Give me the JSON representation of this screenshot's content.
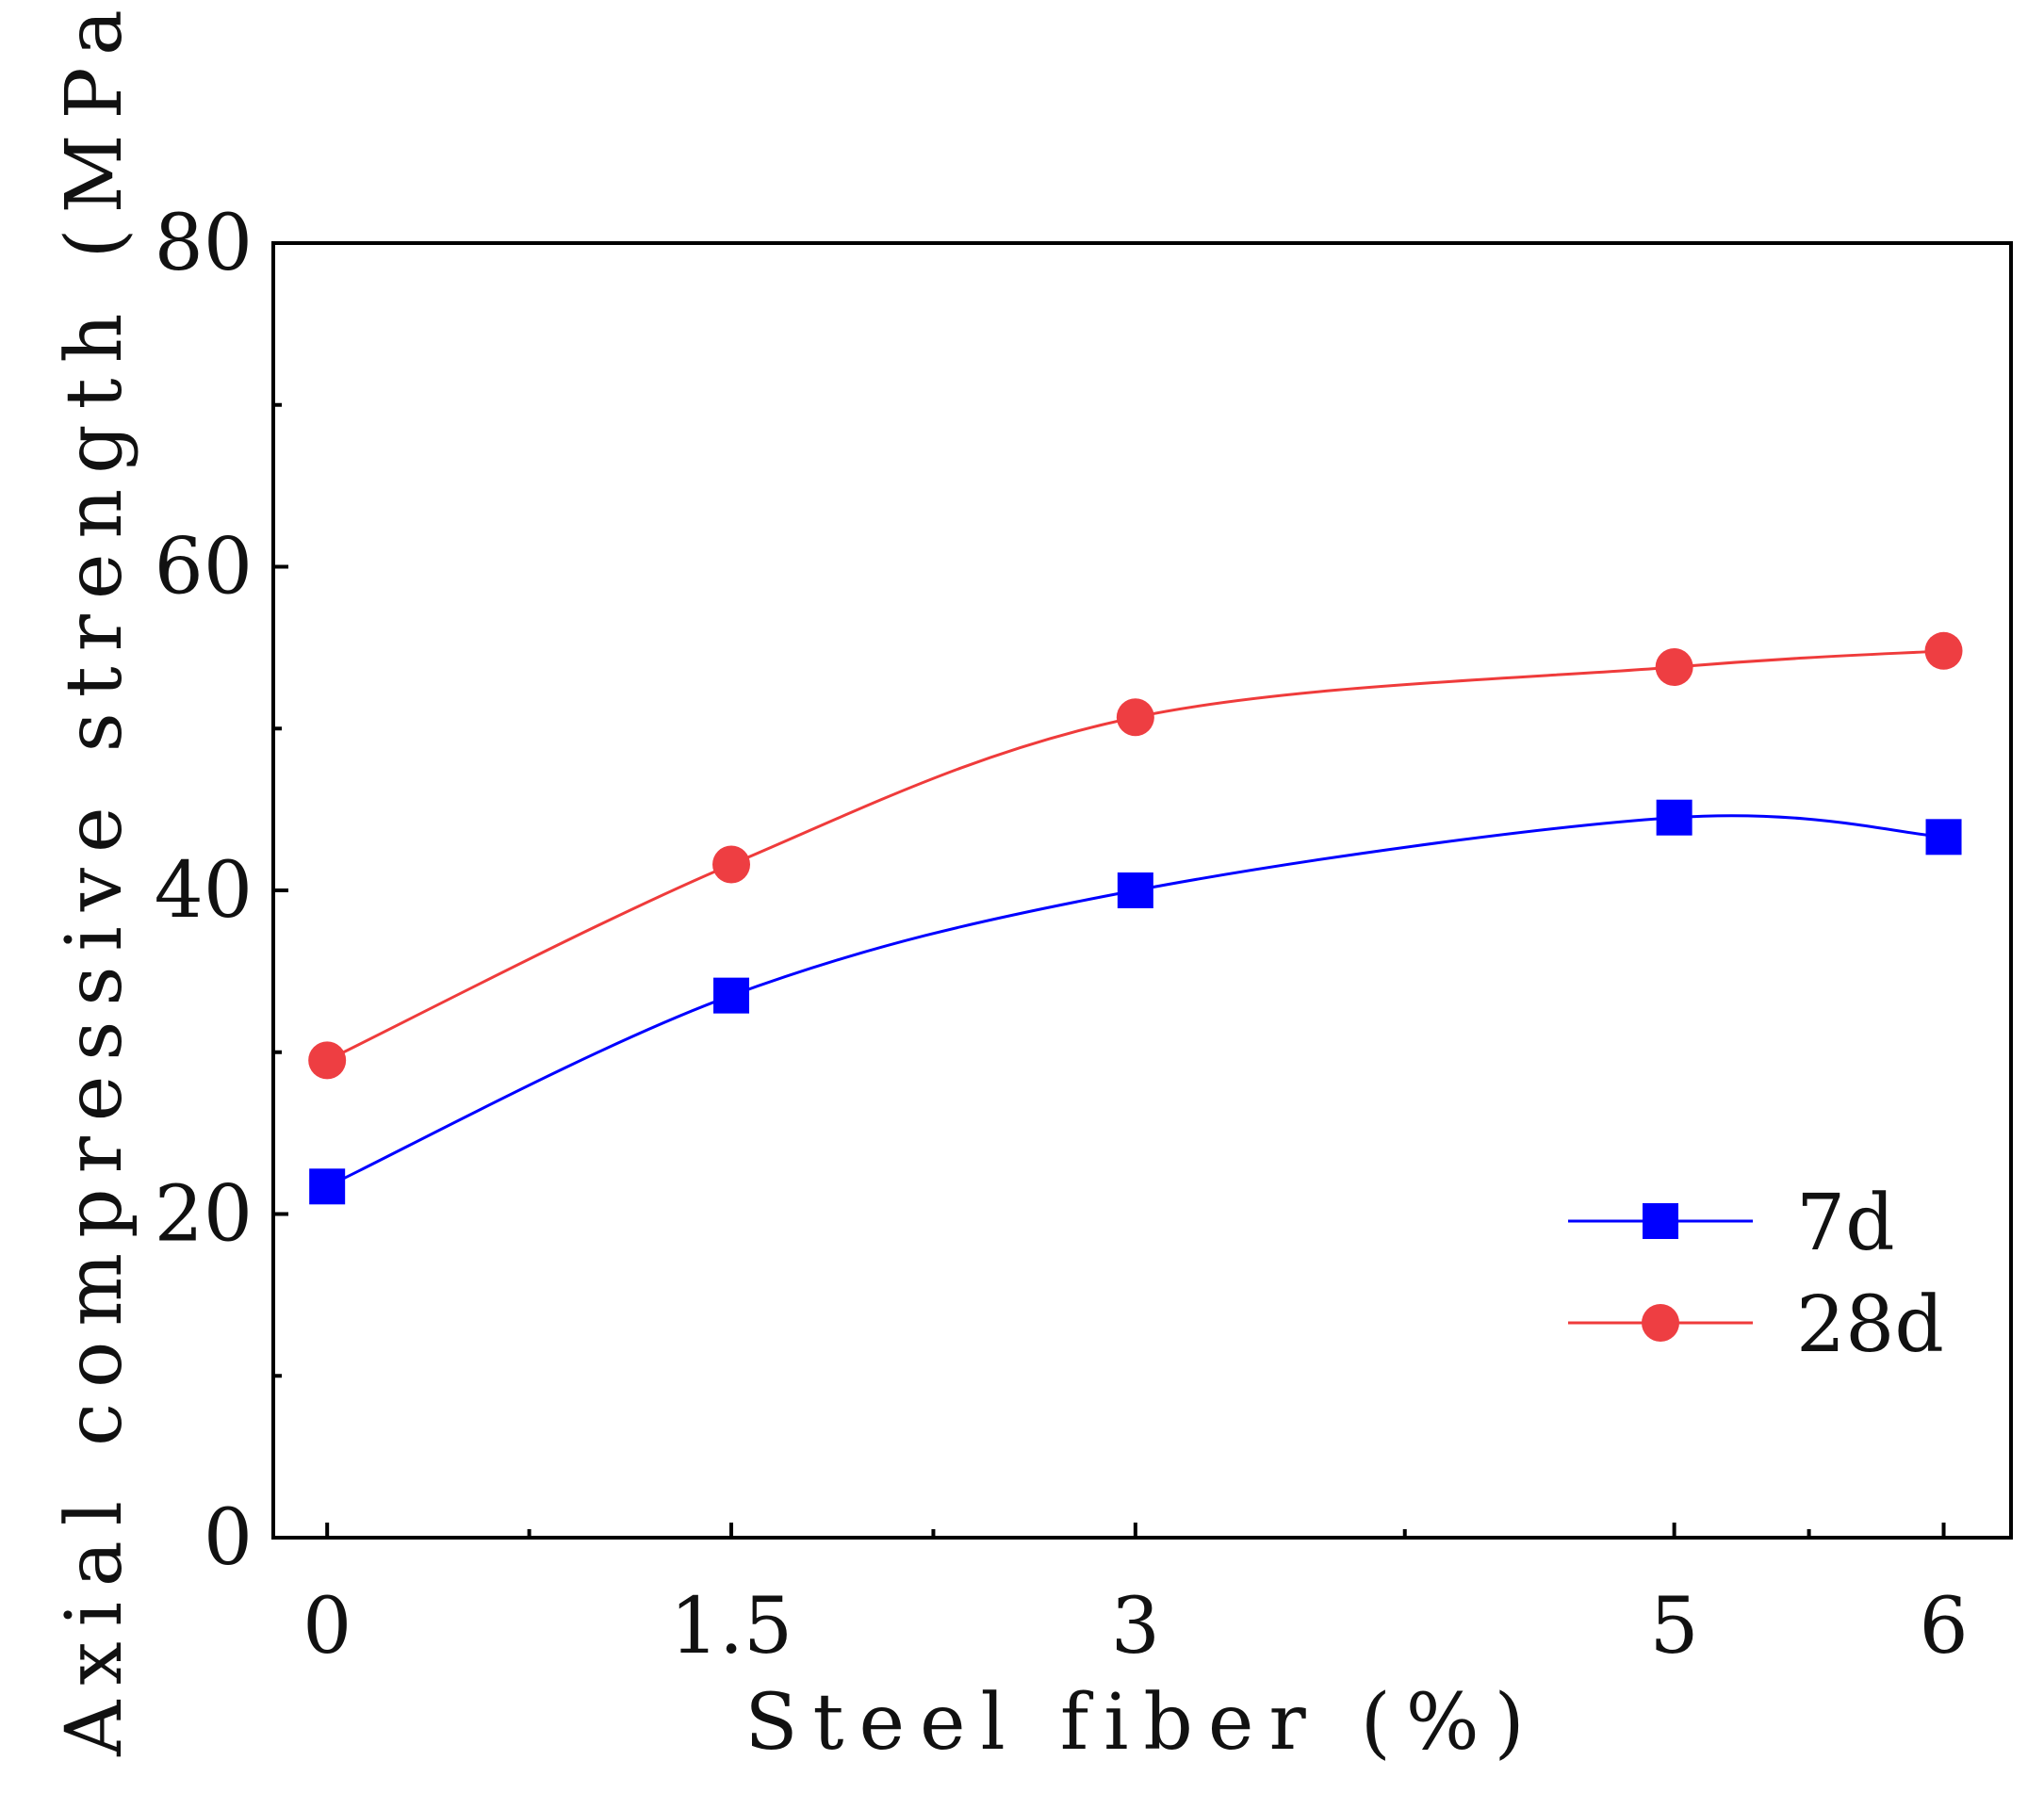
{
  "chart_data": {
    "type": "line",
    "title": "",
    "xlabel": "Steel fiber (%)",
    "ylabel": "Axial compressive strength (MPa)",
    "x": [
      0,
      1.5,
      3,
      5,
      6
    ],
    "x_tick_labels": [
      "0",
      "1.5",
      "3",
      "5",
      "6"
    ],
    "x_minor_ticks": [
      0.75,
      2.25,
      4,
      5.5
    ],
    "xlim": [
      -0.2,
      6.25
    ],
    "ylim": [
      0,
      80
    ],
    "y_ticks": [
      0,
      20,
      40,
      60,
      80
    ],
    "y_tick_labels": [
      "0",
      "20",
      "40",
      "60",
      "80"
    ],
    "y_minor_ticks": [
      10,
      30,
      50,
      70
    ],
    "grid": false,
    "legend_position": "bottom-right",
    "series": [
      {
        "name": "7d",
        "marker": "square",
        "color": "#0000ff",
        "marker_color": "#0000ff",
        "values": [
          21.7,
          33.5,
          40.0,
          44.5,
          43.3
        ]
      },
      {
        "name": "28d",
        "marker": "circle",
        "color": "#ef3b3b",
        "marker_color": "#ee3e42",
        "values": [
          29.5,
          41.6,
          50.7,
          53.8,
          54.8
        ]
      }
    ]
  }
}
